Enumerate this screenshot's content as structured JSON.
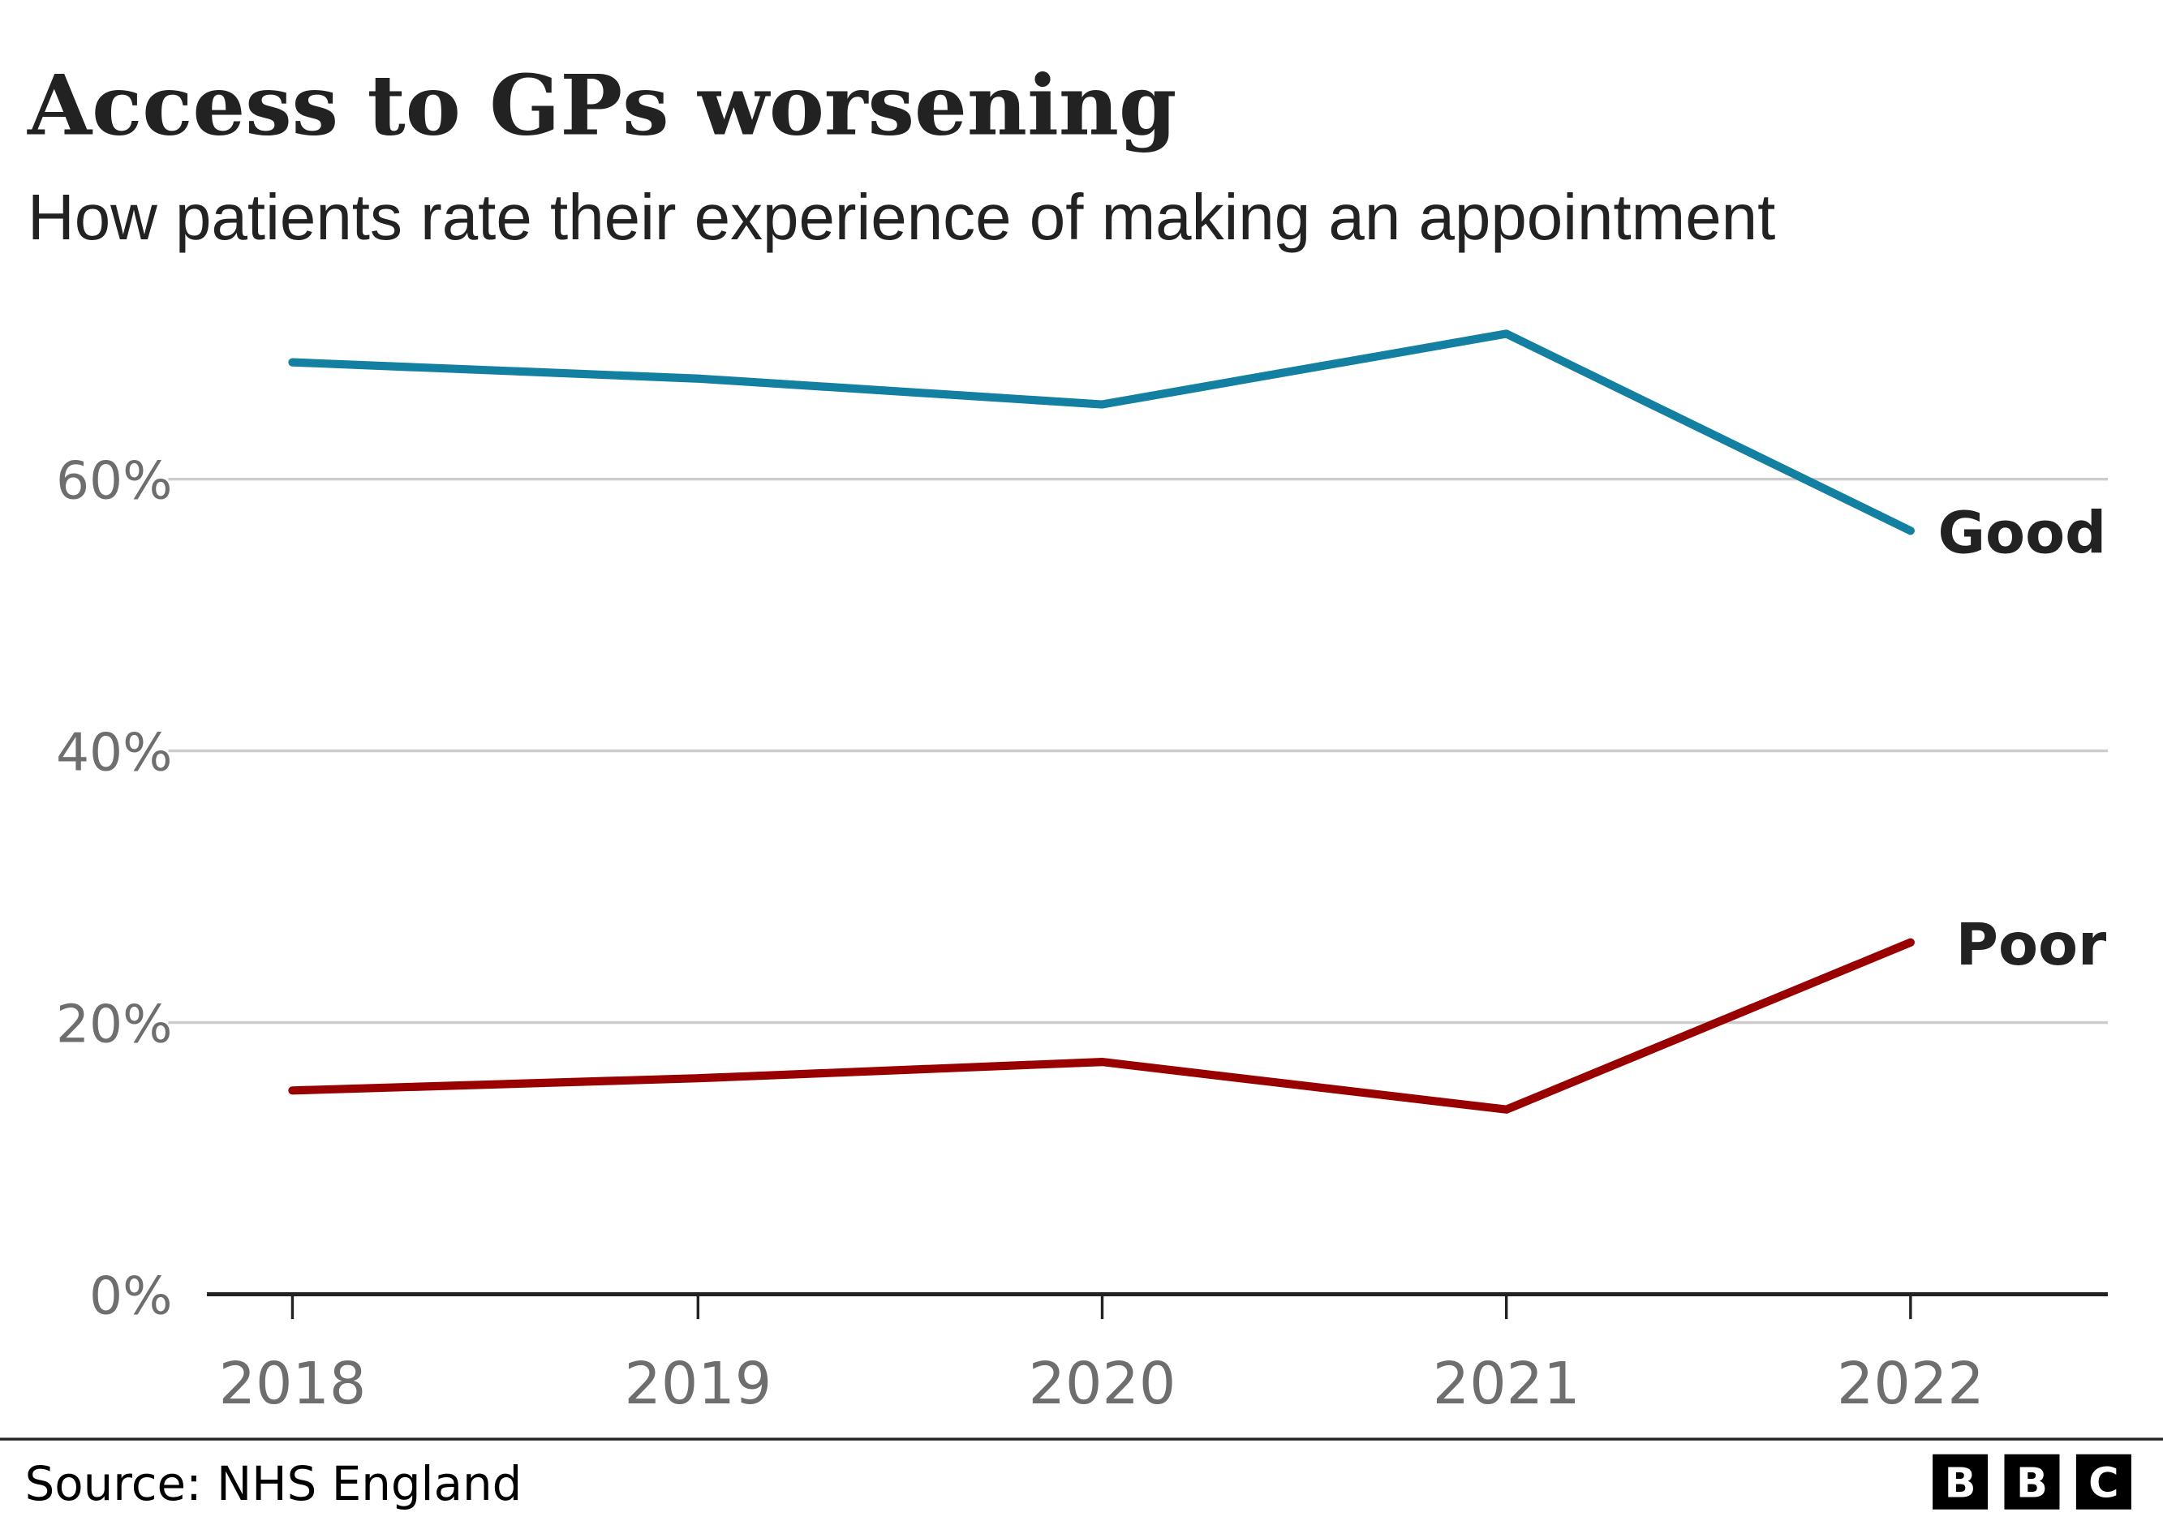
{
  "chart_data": {
    "type": "line",
    "title": "Access to GPs worsening",
    "subtitle": "How patients rate their experience of making an appointment",
    "x": [
      "2018",
      "2019",
      "2020",
      "2021",
      "2022"
    ],
    "y_ticks": [
      "0%",
      "20%",
      "40%",
      "60%"
    ],
    "ylim": [
      0,
      72
    ],
    "grid": true,
    "legend": "direct labels at line ends",
    "series": [
      {
        "name": "Good",
        "color": "#1380A1",
        "values": [
          68.6,
          67.4,
          65.5,
          70.7,
          56.2
        ]
      },
      {
        "name": "Poor",
        "color": "#990000",
        "values": [
          15.0,
          15.9,
          17.1,
          13.6,
          25.9
        ]
      }
    ]
  },
  "footer": {
    "source": "Source: NHS England",
    "logo": [
      "B",
      "B",
      "C"
    ]
  }
}
